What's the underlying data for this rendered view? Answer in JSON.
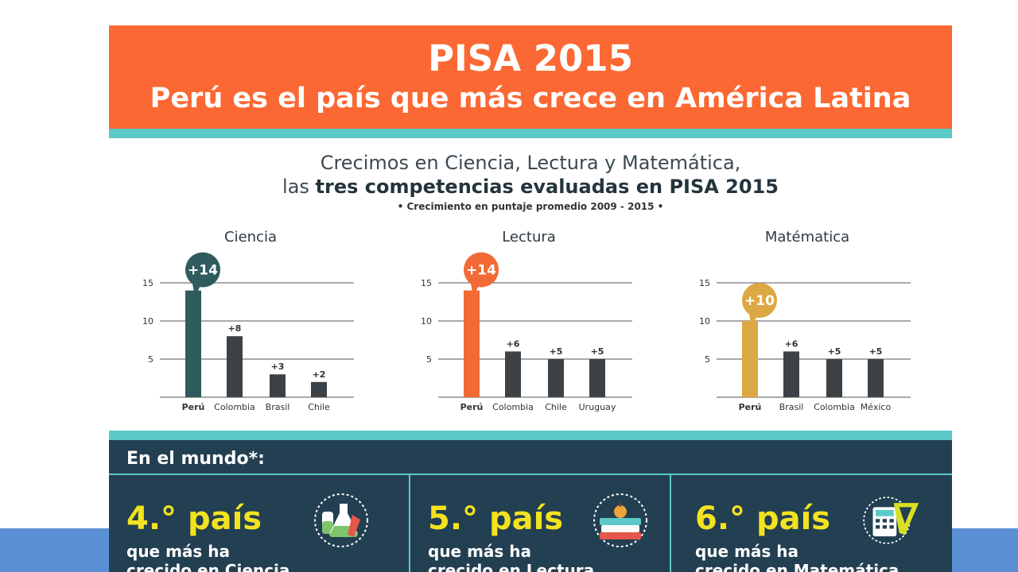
{
  "header": {
    "title": "PISA 2015",
    "subtitle": "Perú es el país que más crece en América Latina"
  },
  "intro": {
    "line1": "Crecimos en Ciencia, Lectura y Matemática,",
    "line2_prefix": "las ",
    "line2_bold": "tres competencias evaluadas en PISA 2015",
    "note": "• Crecimiento en puntaje promedio 2009 - 2015 •"
  },
  "chart_data": [
    {
      "type": "bar",
      "title": "Ciencia",
      "categories": [
        "Perú",
        "Colombia",
        "Brasil",
        "Chile"
      ],
      "values": [
        14,
        8,
        3,
        2
      ],
      "labels": [
        "+14",
        "+8",
        "+3",
        "+2"
      ],
      "highlight_color": "#2f5b5e",
      "bar_color": "#3c4246",
      "ylim": [
        0,
        15
      ],
      "yticks": [
        5,
        10,
        15
      ],
      "grid": true
    },
    {
      "type": "bar",
      "title": "Lectura",
      "categories": [
        "Perú",
        "Colombia",
        "Chile",
        "Uruguay"
      ],
      "values": [
        14,
        6,
        5,
        5
      ],
      "labels": [
        "+14",
        "+6",
        "+5",
        "+5"
      ],
      "highlight_color": "#f26a36",
      "bar_color": "#3c4246",
      "ylim": [
        0,
        15
      ],
      "yticks": [
        5,
        10,
        15
      ],
      "grid": true
    },
    {
      "type": "bar",
      "title": "Matématica",
      "categories": [
        "Perú",
        "Brasil",
        "Colombia",
        "México"
      ],
      "values": [
        10,
        6,
        5,
        5
      ],
      "labels": [
        "+10",
        "+6",
        "+5",
        "+5"
      ],
      "highlight_color": "#dca844",
      "bar_color": "#3c4246",
      "ylim": [
        0,
        15
      ],
      "yticks": [
        5,
        10,
        15
      ],
      "grid": true
    }
  ],
  "world": {
    "title": "En el mundo*:",
    "items": [
      {
        "rank": "4.° país",
        "line1": "que más ha",
        "line2_prefix": "crecido en ",
        "line2_subject": "Ciencia",
        "icon": "flask-icon"
      },
      {
        "rank": "5.° país",
        "line1": "que más ha",
        "line2_prefix": "crecido en ",
        "line2_subject": "Lectura",
        "icon": "books-icon"
      },
      {
        "rank": "6.° país",
        "line1": "que más ha",
        "line2_prefix": "crecido en ",
        "line2_subject": "Matemática",
        "icon": "calculator-icon"
      }
    ]
  },
  "colors": {
    "banner": "#fb6833",
    "stripe": "#5bc9c8",
    "world_bg": "#233f52",
    "rank": "#f3e31e",
    "bottom_bar": "#5b8fd4"
  }
}
